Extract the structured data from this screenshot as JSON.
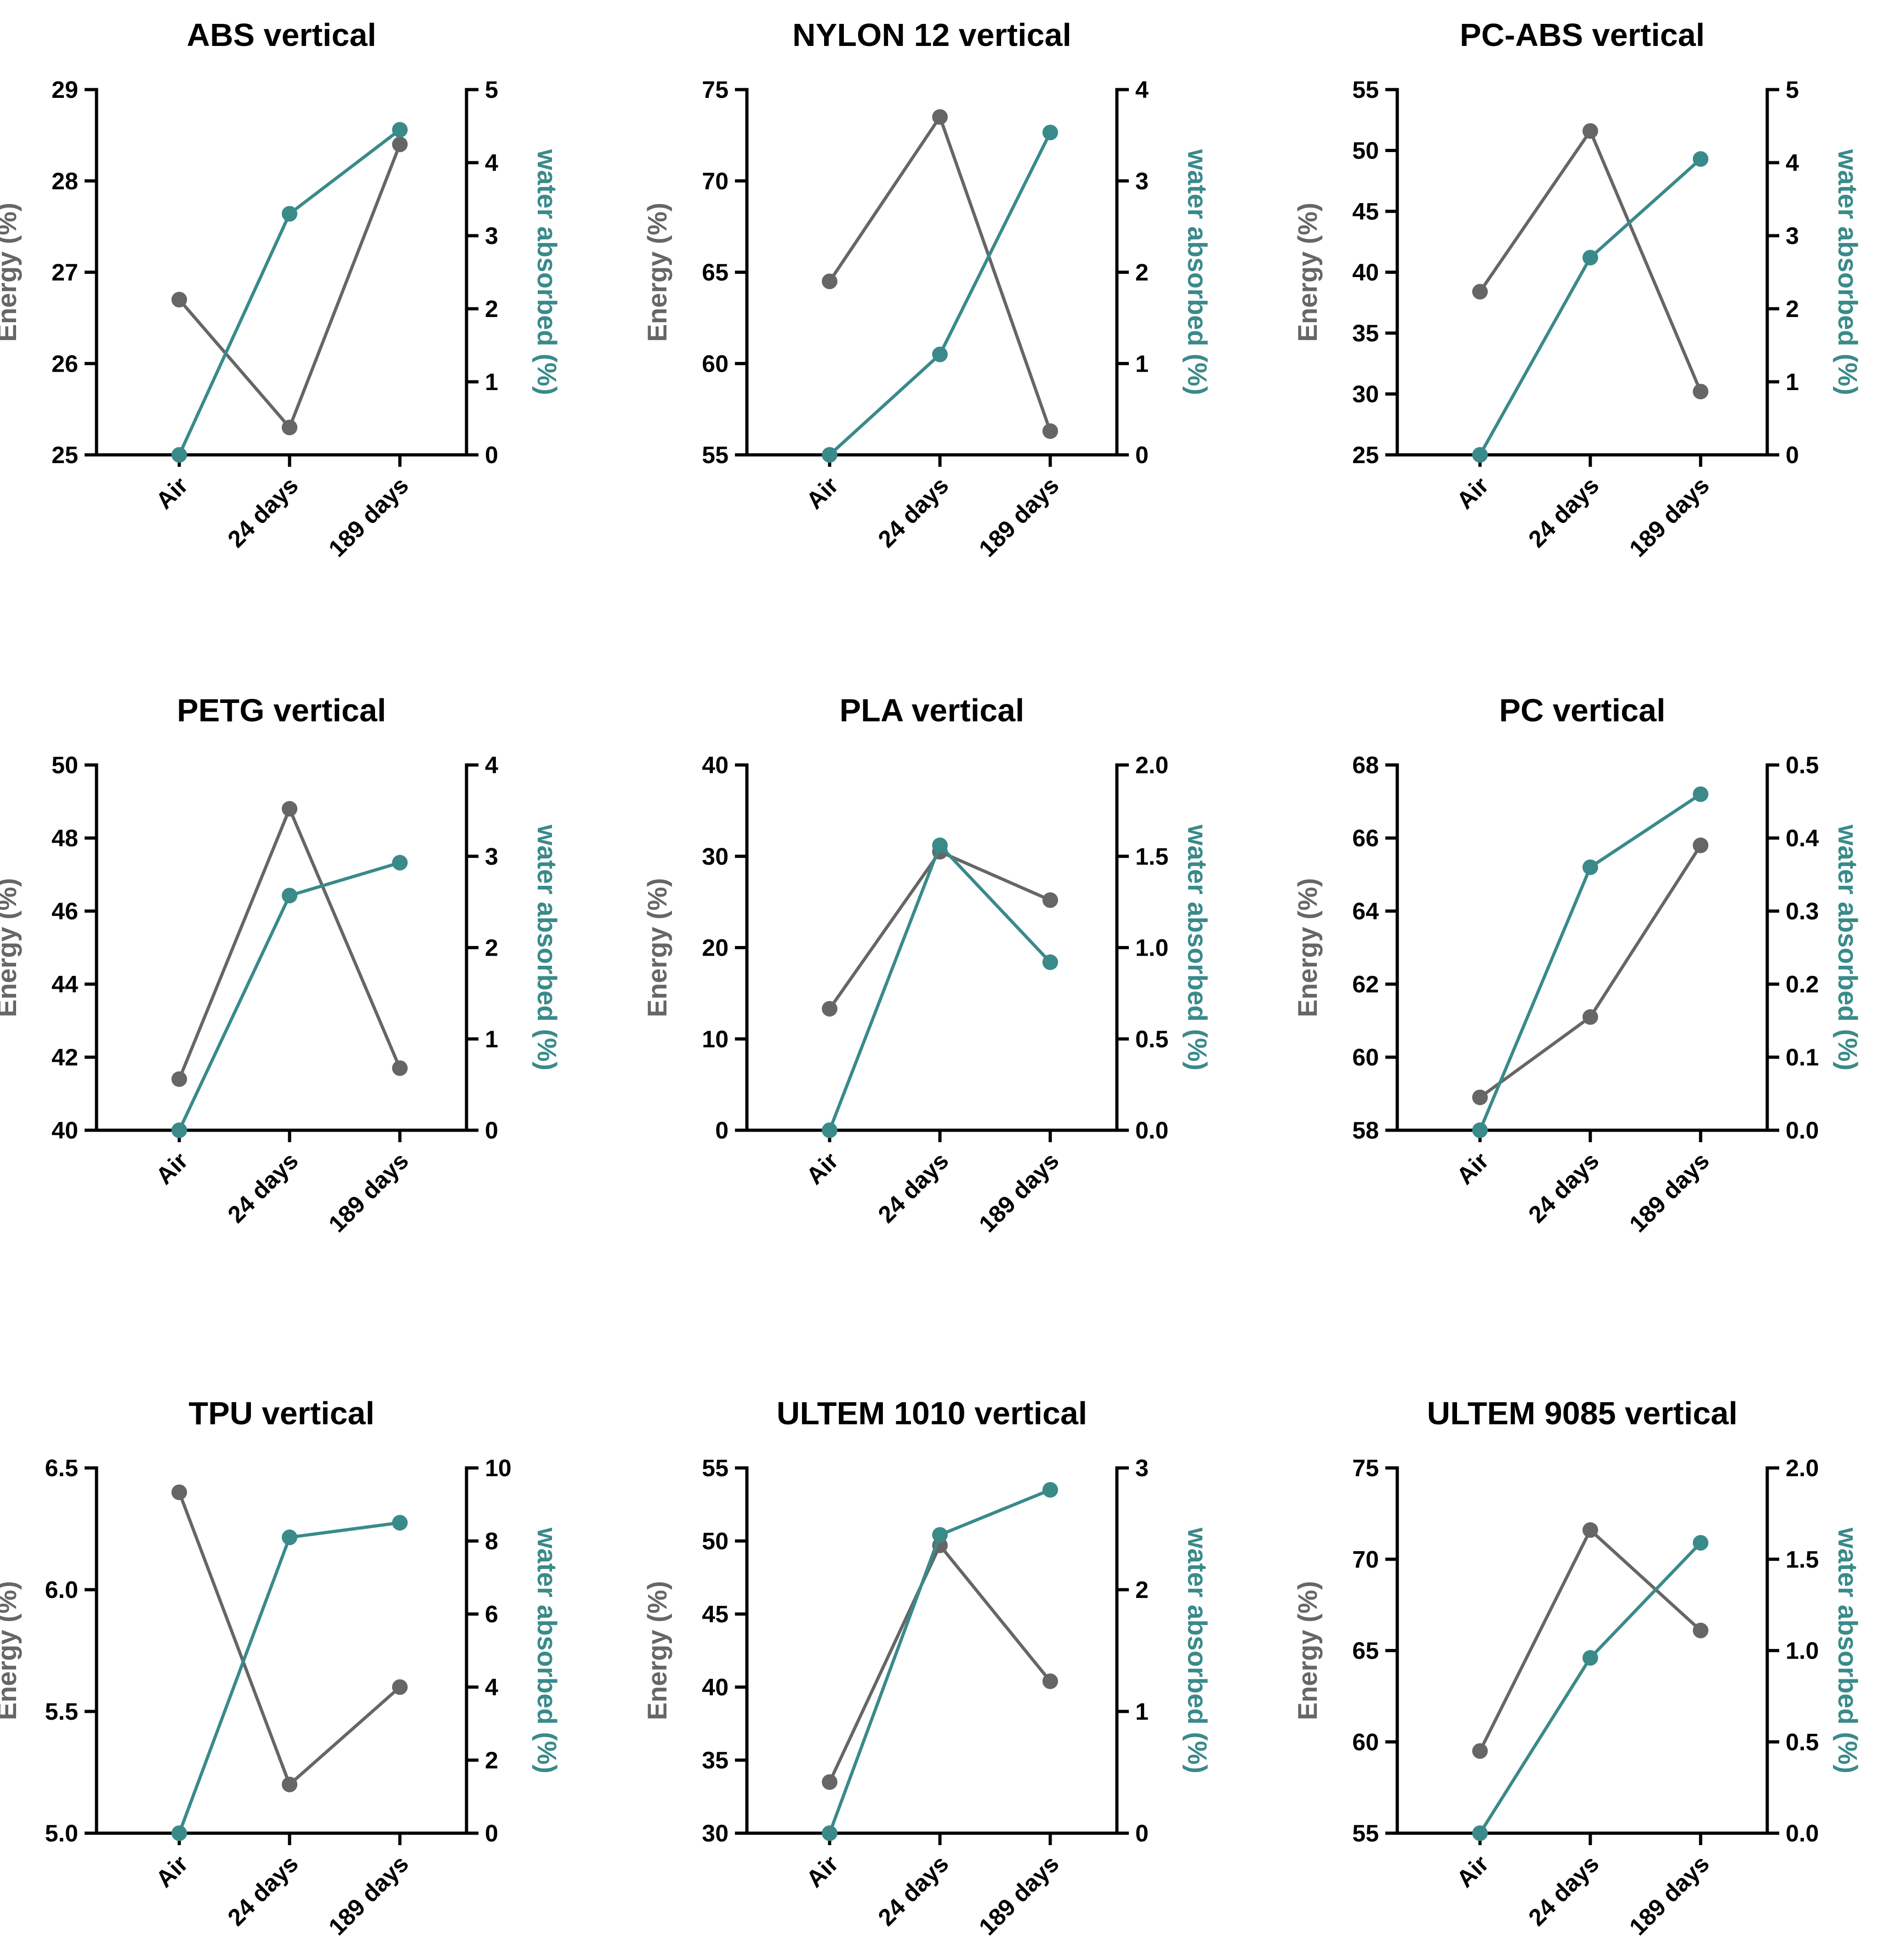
{
  "colors": {
    "energy": "#666666",
    "water": "#3a8a8a",
    "axis": "#000000"
  },
  "chart_data": [
    {
      "type": "line",
      "title": "ABS vertical",
      "categories": [
        "Air",
        "24 days",
        "189 days"
      ],
      "ylabel": "Energy (%)",
      "y2label": "water absorbed (%)",
      "ylim": [
        25,
        29
      ],
      "yticks": [
        "25",
        "26",
        "27",
        "28",
        "29"
      ],
      "y2lim": [
        0,
        5
      ],
      "y2ticks": [
        "0",
        "1",
        "2",
        "3",
        "4",
        "5"
      ],
      "series": [
        {
          "name": "Energy (%)",
          "axis": "left",
          "values": [
            26.7,
            25.3,
            28.4
          ]
        },
        {
          "name": "water absorbed (%)",
          "axis": "right",
          "values": [
            0,
            3.3,
            4.45
          ]
        }
      ]
    },
    {
      "type": "line",
      "title": "NYLON 12 vertical",
      "categories": [
        "Air",
        "24 days",
        "189 days"
      ],
      "ylabel": "Energy (%)",
      "y2label": "water absorbed (%)",
      "ylim": [
        55,
        75
      ],
      "yticks": [
        "55",
        "60",
        "65",
        "70",
        "75"
      ],
      "y2lim": [
        0,
        4
      ],
      "y2ticks": [
        "0",
        "1",
        "2",
        "3",
        "4"
      ],
      "series": [
        {
          "name": "Energy (%)",
          "axis": "left",
          "values": [
            64.5,
            73.5,
            56.3
          ]
        },
        {
          "name": "water absorbed (%)",
          "axis": "right",
          "values": [
            0,
            1.1,
            3.53
          ]
        }
      ]
    },
    {
      "type": "line",
      "title": "PC-ABS vertical",
      "categories": [
        "Air",
        "24 days",
        "189 days"
      ],
      "ylabel": "Energy (%)",
      "y2label": "water absorbed (%)",
      "ylim": [
        25,
        55
      ],
      "yticks": [
        "25",
        "30",
        "35",
        "40",
        "45",
        "50",
        "55"
      ],
      "y2lim": [
        0,
        5
      ],
      "y2ticks": [
        "0",
        "1",
        "2",
        "3",
        "4",
        "5"
      ],
      "series": [
        {
          "name": "Energy (%)",
          "axis": "left",
          "values": [
            38.4,
            51.6,
            30.2
          ]
        },
        {
          "name": "water absorbed (%)",
          "axis": "right",
          "values": [
            0,
            2.7,
            4.05
          ]
        }
      ]
    },
    {
      "type": "line",
      "title": "PETG vertical",
      "categories": [
        "Air",
        "24 days",
        "189 days"
      ],
      "ylabel": "Energy (%)",
      "y2label": "water absorbed (%)",
      "ylim": [
        40,
        50
      ],
      "yticks": [
        "40",
        "42",
        "44",
        "46",
        "48",
        "50"
      ],
      "y2lim": [
        0,
        4
      ],
      "y2ticks": [
        "0",
        "1",
        "2",
        "3",
        "4"
      ],
      "series": [
        {
          "name": "Energy (%)",
          "axis": "left",
          "values": [
            41.4,
            48.8,
            41.7
          ]
        },
        {
          "name": "water absorbed (%)",
          "axis": "right",
          "values": [
            0,
            2.57,
            2.93
          ]
        }
      ]
    },
    {
      "type": "line",
      "title": "PLA vertical",
      "categories": [
        "Air",
        "24 days",
        "189 days"
      ],
      "ylabel": "Energy (%)",
      "y2label": "water absorbed (%)",
      "ylim": [
        0,
        40
      ],
      "yticks": [
        "0",
        "10",
        "20",
        "30",
        "40"
      ],
      "y2lim": [
        0,
        2
      ],
      "y2ticks": [
        "0.0",
        "0.5",
        "1.0",
        "1.5",
        "2.0"
      ],
      "series": [
        {
          "name": "Energy (%)",
          "axis": "left",
          "values": [
            13.3,
            30.5,
            25.2
          ]
        },
        {
          "name": "water absorbed (%)",
          "axis": "right",
          "values": [
            0,
            1.56,
            0.92
          ]
        }
      ]
    },
    {
      "type": "line",
      "title": "PC vertical",
      "categories": [
        "Air",
        "24 days",
        "189 days"
      ],
      "ylabel": "Energy (%)",
      "y2label": "water absorbed (%)",
      "ylim": [
        58,
        68
      ],
      "yticks": [
        "58",
        "60",
        "62",
        "64",
        "66",
        "68"
      ],
      "y2lim": [
        0,
        0.5
      ],
      "y2ticks": [
        "0.0",
        "0.1",
        "0.2",
        "0.3",
        "0.4",
        "0.5"
      ],
      "series": [
        {
          "name": "Energy (%)",
          "axis": "left",
          "values": [
            58.9,
            61.1,
            65.8
          ]
        },
        {
          "name": "water absorbed (%)",
          "axis": "right",
          "values": [
            0,
            0.36,
            0.46
          ]
        }
      ]
    },
    {
      "type": "line",
      "title": "TPU vertical",
      "categories": [
        "Air",
        "24 days",
        "189 days"
      ],
      "ylabel": "Energy (%)",
      "y2label": "water absorbed (%)",
      "ylim": [
        5,
        6.5
      ],
      "yticks": [
        "5.0",
        "5.5",
        "6.0",
        "6.5"
      ],
      "y2lim": [
        0,
        10
      ],
      "y2ticks": [
        "0",
        "2",
        "4",
        "6",
        "8",
        "10"
      ],
      "series": [
        {
          "name": "Energy (%)",
          "axis": "left",
          "values": [
            6.4,
            5.2,
            5.6
          ]
        },
        {
          "name": "water absorbed (%)",
          "axis": "right",
          "values": [
            0,
            8.1,
            8.5
          ]
        }
      ]
    },
    {
      "type": "line",
      "title": "ULTEM 1010 vertical",
      "categories": [
        "Air",
        "24 days",
        "189 days"
      ],
      "ylabel": "Energy (%)",
      "y2label": "water absorbed (%)",
      "ylim": [
        30,
        55
      ],
      "yticks": [
        "30",
        "35",
        "40",
        "45",
        "50",
        "55"
      ],
      "y2lim": [
        0,
        3
      ],
      "y2ticks": [
        "0",
        "1",
        "2",
        "3"
      ],
      "series": [
        {
          "name": "Energy (%)",
          "axis": "left",
          "values": [
            33.5,
            49.7,
            40.4
          ]
        },
        {
          "name": "water absorbed (%)",
          "axis": "right",
          "values": [
            0,
            2.45,
            2.82
          ]
        }
      ]
    },
    {
      "type": "line",
      "title": "ULTEM 9085 vertical",
      "categories": [
        "Air",
        "24 days",
        "189 days"
      ],
      "ylabel": "Energy (%)",
      "y2label": "water absorbed (%)",
      "ylim": [
        55,
        75
      ],
      "yticks": [
        "55",
        "60",
        "65",
        "70",
        "75"
      ],
      "y2lim": [
        0,
        2
      ],
      "y2ticks": [
        "0.0",
        "0.5",
        "1.0",
        "1.5",
        "2.0"
      ],
      "series": [
        {
          "name": "Energy (%)",
          "axis": "left",
          "values": [
            59.5,
            71.6,
            66.1
          ]
        },
        {
          "name": "water absorbed (%)",
          "axis": "right",
          "values": [
            0,
            0.96,
            1.59
          ]
        }
      ]
    }
  ]
}
